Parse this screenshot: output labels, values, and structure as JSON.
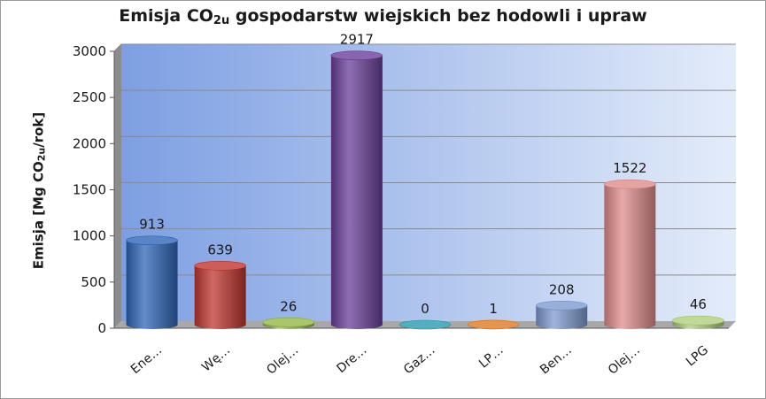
{
  "chart_data": {
    "type": "bar",
    "title_parts": {
      "pre": "Emisja CO",
      "sub": "2u",
      "post": " gospodarstw wiejskich bez hodowli i upraw"
    },
    "ylabel_parts": {
      "pre": "Emisja [Mg CO",
      "sub": "2u",
      "post": "/rok]"
    },
    "xlabel": "",
    "ylim": [
      0,
      3000
    ],
    "yticks": [
      0,
      500,
      1000,
      1500,
      2000,
      2500,
      3000
    ],
    "grid": true,
    "legend": "none",
    "categories": [
      "Ene…",
      "Wę…",
      "Olej…",
      "Dre…",
      "Gaz…",
      "LP…",
      "Ben…",
      "Olej…",
      "LPG"
    ],
    "values": [
      913,
      639,
      26,
      2917,
      0,
      1,
      208,
      1522,
      46
    ],
    "colors": [
      "#2f65b8",
      "#c0352f",
      "#95b845",
      "#6a3f9a",
      "#2a9ab0",
      "#e07a22",
      "#7e9bd0",
      "#e08c8c",
      "#b0cf7c"
    ]
  }
}
